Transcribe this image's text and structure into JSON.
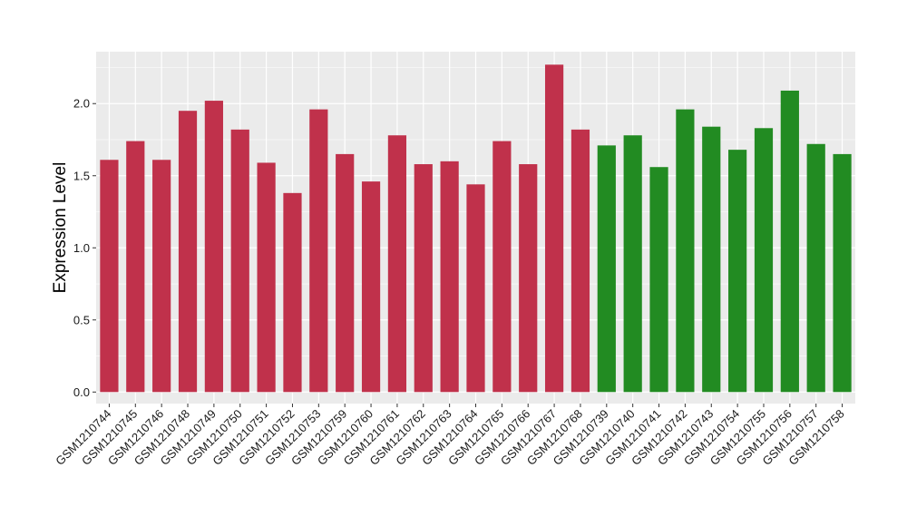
{
  "chart_data": {
    "type": "bar",
    "title": "",
    "xlabel": "",
    "ylabel": "Expression Level",
    "ylim": [
      -0.08,
      2.36
    ],
    "yticks": [
      0.0,
      0.5,
      1.0,
      1.5,
      2.0
    ],
    "ytick_labels": [
      "0.0",
      "0.5",
      "1.0",
      "1.5",
      "2.0"
    ],
    "grid": true,
    "legend": "none",
    "panel_color": "#ebebeb",
    "grid_color": "#ffffff",
    "categories": [
      "GSM1210744",
      "GSM1210745",
      "GSM1210746",
      "GSM1210748",
      "GSM1210749",
      "GSM1210750",
      "GSM1210751",
      "GSM1210752",
      "GSM1210753",
      "GSM1210759",
      "GSM1210760",
      "GSM1210761",
      "GSM1210762",
      "GSM1210763",
      "GSM1210764",
      "GSM1210765",
      "GSM1210766",
      "GSM1210767",
      "GSM1210768",
      "GSM1210739",
      "GSM1210740",
      "GSM1210741",
      "GSM1210742",
      "GSM1210743",
      "GSM1210754",
      "GSM1210755",
      "GSM1210756",
      "GSM1210757",
      "GSM1210758"
    ],
    "values": [
      1.61,
      1.74,
      1.61,
      1.95,
      2.02,
      1.82,
      1.59,
      1.38,
      1.96,
      1.65,
      1.46,
      1.78,
      1.58,
      1.6,
      1.44,
      1.74,
      1.58,
      2.27,
      1.82,
      1.71,
      1.78,
      1.56,
      1.96,
      1.84,
      1.68,
      1.83,
      2.09,
      1.72,
      1.65
    ],
    "bar_colors": [
      "#c0314b",
      "#c0314b",
      "#c0314b",
      "#c0314b",
      "#c0314b",
      "#c0314b",
      "#c0314b",
      "#c0314b",
      "#c0314b",
      "#c0314b",
      "#c0314b",
      "#c0314b",
      "#c0314b",
      "#c0314b",
      "#c0314b",
      "#c0314b",
      "#c0314b",
      "#c0314b",
      "#c0314b",
      "#228b22",
      "#228b22",
      "#228b22",
      "#228b22",
      "#228b22",
      "#228b22",
      "#228b22",
      "#228b22",
      "#228b22",
      "#228b22"
    ]
  }
}
